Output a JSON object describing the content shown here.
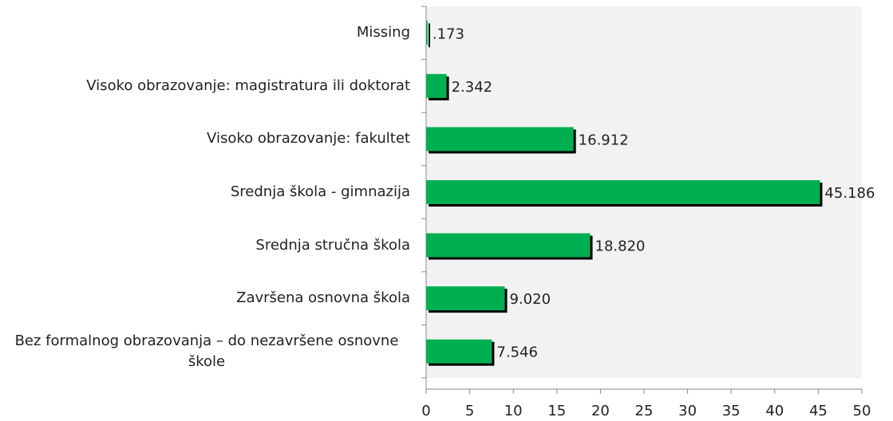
{
  "chart_data": {
    "type": "bar",
    "orientation": "horizontal",
    "categories": [
      "Missing",
      "Visoko obrazovanje: magistratura ili doktorat",
      "Visoko obrazovanje: fakultet",
      "Srednja škola - gimnazija",
      "Srednja stručna škola",
      "Završena osnovna škola",
      "Bez formalnog obrazovanja – do nezavršene osnovne škole"
    ],
    "values": [
      0.173,
      2.342,
      16.912,
      45.186,
      18.82,
      9.02,
      7.546
    ],
    "value_labels": [
      ".173",
      "2.342",
      "16.912",
      "45.186",
      "18.820",
      "9.020",
      "7.546"
    ],
    "color": "#00b050",
    "xlim": [
      0,
      50
    ],
    "xticks": [
      0,
      5,
      10,
      15,
      20,
      25,
      30,
      35,
      40,
      45,
      50
    ]
  }
}
